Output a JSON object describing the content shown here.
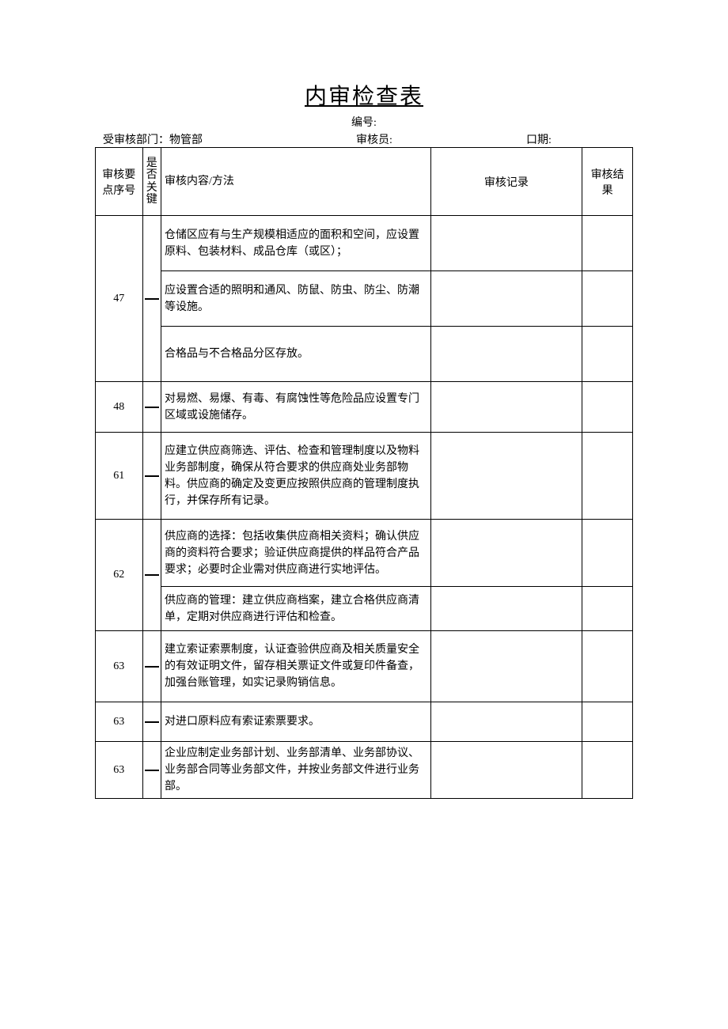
{
  "document": {
    "title": "内审检查表",
    "doc_no_label": "编号:",
    "meta": {
      "department_label": "受审核部门：",
      "department_value": "物管部",
      "auditor_label": "审核员:",
      "date_label": "口期:"
    },
    "headers": {
      "seq": "审核要点序号",
      "key": "是否关键",
      "content": "审核内容/方法",
      "record": "审核记录",
      "result": "审核结果"
    },
    "rows": [
      {
        "seq": "47",
        "key_mark": "—",
        "items": [
          {
            "text": "仓储区应有与生产规模相适应的面积和空间，应设置原料、包装材料、成品仓库（或区）；",
            "h": "h-70"
          },
          {
            "text": "应设置合适的照明和通风、防鼠、防虫、防尘、防潮等设施。",
            "h": "h-70"
          },
          {
            "text": "合格品与不合格品分区存放。",
            "h": "h-70"
          }
        ]
      },
      {
        "seq": "48",
        "key_mark": "—",
        "items": [
          {
            "text": "对易燃、易爆、有毒、有腐蚀性等危险品应设置专门区域或设施储存。",
            "h": "h-64"
          }
        ]
      },
      {
        "seq": "61",
        "key_mark": "—",
        "items": [
          {
            "text": "应建立供应商筛选、评估、检查和管理制度以及物料业务部制度，确保从符合要求的供应商处业务部物料。供应商的确定及变更应按照供应商的管理制度执行，并保存所有记录。",
            "h": "h-110"
          }
        ]
      },
      {
        "seq": "62",
        "key_mark": "—",
        "items": [
          {
            "text": "供应商的选择：包括收集供应商相关资料；确认供应商的资料符合要求；验证供应商提供的样品符合产品要求；必要时企业需对供应商进行实地评估。",
            "h": "h-85"
          },
          {
            "text": "供应商的管理：建立供应商档案，建立合格供应商清单，定期对供应商进行评估和检查。",
            "h": "h-56"
          }
        ]
      },
      {
        "seq": "63",
        "key_mark": "—",
        "items": [
          {
            "text": "建立索证索票制度，认证查验供应商及相关质量安全的有效证明文件，留存相关票证文件或复印件备查，加强台账管理，如实记录购销信息。",
            "h": "h-90"
          }
        ]
      },
      {
        "seq": "63",
        "key_mark": "—",
        "items": [
          {
            "text": "对进口原料应有索证索票要求。",
            "h": "h-50"
          }
        ]
      },
      {
        "seq": "63",
        "key_mark": "—",
        "items": [
          {
            "text": "企业应制定业务部计划、业务部清单、业务部协议、业务部合同等业务部文件，并按业务部文件进行业务部。",
            "h": "h-70"
          }
        ]
      }
    ]
  }
}
